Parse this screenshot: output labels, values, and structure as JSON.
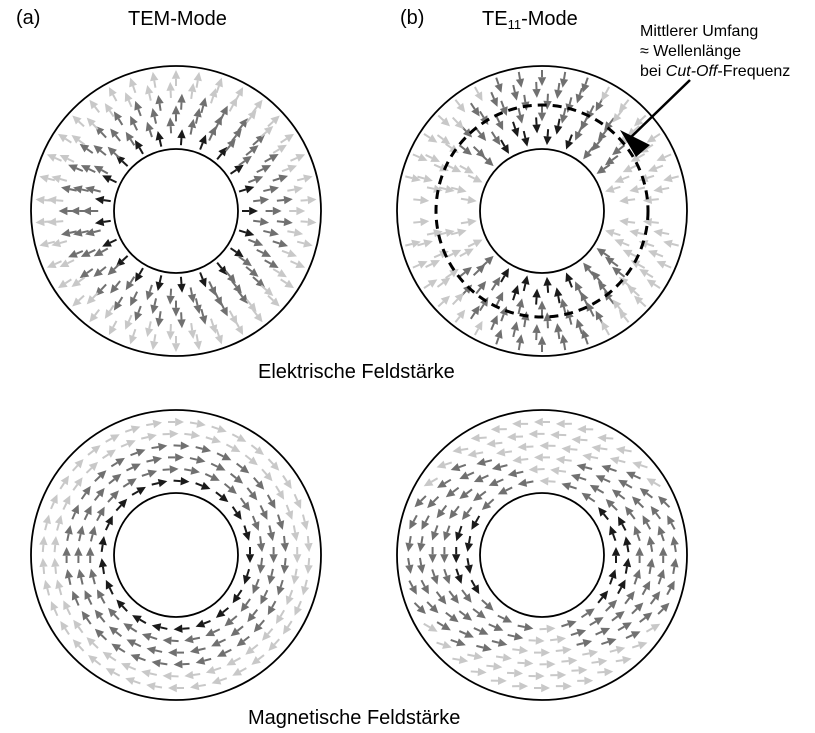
{
  "labels": {
    "a": "(a)",
    "b": "(b)",
    "tem_title": "TEM-Mode",
    "te11_prefix": "TE",
    "te11_sub": "11",
    "te11_suffix": "-Mode"
  },
  "note": {
    "line1": "Mittlerer Umfang",
    "line2": "≈ Wellenlänge",
    "line3_pre": "bei ",
    "line3_italic": "Cut-Off",
    "line3_post": "-Frequenz"
  },
  "captions": {
    "electric": "Elektrische Feldstärke",
    "magnetic": "Magnetische Feldstärke"
  },
  "colors": {
    "strong": "#1a1a1a",
    "medium": "#707070",
    "light": "#c8c8c8",
    "outline": "#000000"
  }
}
